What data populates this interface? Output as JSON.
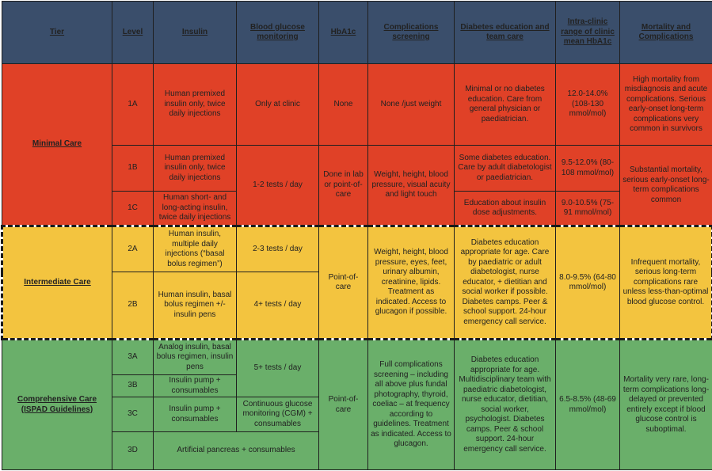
{
  "header": {
    "tier": "Tier",
    "level": "Level",
    "insulin": "Insulin",
    "bgm": "Blood glucose monitoring",
    "hba1c": "HbA1c",
    "screening": "Complications screening",
    "education": "Diabetes education and team care",
    "range": "Intra-clinic range of clinic mean HbA1c",
    "mortality": "Mortality and Complications"
  },
  "tier1": {
    "name": "Minimal Care",
    "color": "#e04127",
    "levels": [
      "1A",
      "1B",
      "1C"
    ],
    "insulin": [
      "Human premixed insulin only, twice daily injections",
      "Human premixed insulin only, twice daily injections",
      "Human short- and long-acting insulin, twice daily injections"
    ],
    "bgm": [
      "Only at clinic",
      "1-2 tests / day"
    ],
    "hba1c": [
      "None",
      "Done in lab or point-of-care"
    ],
    "screening": [
      "None /just weight",
      "Weight, height, blood pressure, visual acuity and light touch"
    ],
    "education": [
      "Minimal or no diabetes education. Care from general physician or paediatrician.",
      "Some diabetes education. Care by adult diabetologist or paediatrician.",
      "Education about insulin dose adjustments."
    ],
    "range": [
      "12.0-14.0% (108-130 mmol/mol)",
      "9.5-12.0% (80-108 mmol/mol)",
      "9.0-10.5% (75-91 mmol/mol)"
    ],
    "mortality": [
      "High mortality from misdiagnosis and acute complications. Serious early-onset long-term complications very common in survivors",
      "Substantial mortality, serious early-onset long-term complications common"
    ]
  },
  "tier2": {
    "name": "Intermediate Care",
    "color": "#f3c43f",
    "levels": [
      "2A",
      "2B"
    ],
    "insulin": [
      "Human insulin, multiple daily injections (“basal bolus regimen”)",
      "Human insulin, basal bolus regimen +/- insulin pens"
    ],
    "bgm": [
      "2-3 tests / day",
      "4+ tests / day"
    ],
    "hba1c": "Point-of-care",
    "screening": "Weight, height, blood pressure, eyes, feet, urinary albumin, creatinine, lipids. Treatment as indicated. Access to glucagon if possible.",
    "education": "Diabetes education appropriate for age. Care by paediatric or adult diabetologist, nurse educator, + dietitian and social worker if possible. Diabetes camps. Peer & school support. 24-hour emergency call service.",
    "range": "8.0-9.5% (64-80 mmol/mol)",
    "mortality": "Infrequent mortality, serious long-term complications rare unless less-than-optimal blood glucose control."
  },
  "tier3": {
    "name": "Comprehensive Care (ISPAD Guidelines)",
    "color": "#6aaf6a",
    "levels": [
      "3A",
      "3B",
      "3C",
      "3D"
    ],
    "insulin": [
      "Analog insulin, basal bolus regimen, insulin pens",
      "Insulin pump + consumables",
      "Insulin pump + consumables"
    ],
    "insulin_3d": "Artificial pancreas + consumables",
    "bgm": [
      "5+ tests / day",
      "Continuous glucose monitoring (CGM) + consumables"
    ],
    "hba1c": "Point-of-care",
    "screening": "Full complications screening – including all above plus fundal photography, thyroid, coeliac – at frequency according to guidelines. Treatment as indicated. Access to glucagon.",
    "education": "Diabetes education appropriate for age. Multidisciplinary team with paediatric diabetologist, nurse educator, dietitian, social worker, psychologist. Diabetes camps. Peer & school support. 24-hour emergency call service.",
    "range": "6.5-8.5% (48-69 mmol/mol)",
    "mortality": "Mortality very rare, long-term complications long-delayed or prevented entirely except if blood glucose control is suboptimal."
  },
  "colors": {
    "header_bg": "#3a4e6b",
    "minimal": "#e04127",
    "intermediate": "#f3c43f",
    "comprehensive": "#6aaf6a"
  }
}
